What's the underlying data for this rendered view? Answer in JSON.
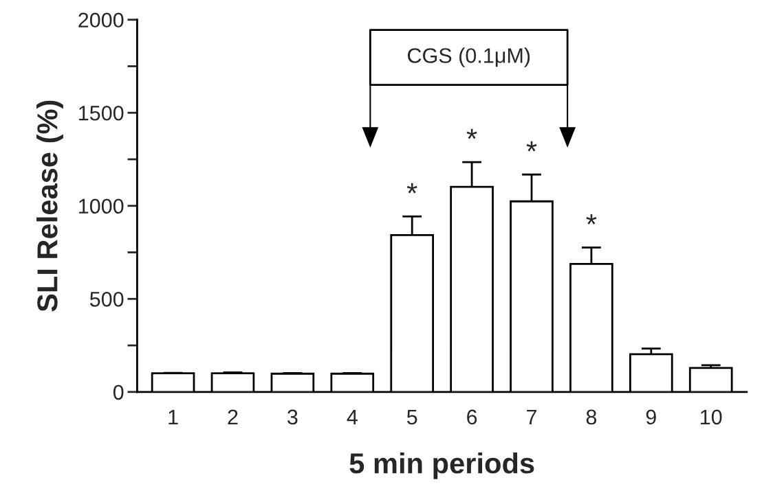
{
  "chart_data": {
    "type": "bar",
    "xlabel": "5 min periods",
    "ylabel": "SLI Release (%)",
    "categories": [
      "1",
      "2",
      "3",
      "4",
      "5",
      "6",
      "7",
      "8",
      "9",
      "10"
    ],
    "values": [
      100,
      100,
      98,
      98,
      843,
      1102,
      1024,
      688,
      203,
      129
    ],
    "errors": [
      2,
      5,
      3,
      3,
      100,
      133,
      144,
      88,
      30,
      15
    ],
    "color": "#ffffff",
    "ylim": [
      0,
      2000
    ],
    "yticks": [
      0,
      {
        "value": 250,
        "label": null
      },
      500,
      {
        "value": 750,
        "label": null
      },
      1000,
      {
        "value": 1250,
        "label": null
      },
      1500,
      {
        "value": 1750,
        "label": null
      },
      2000
    ],
    "annotations": [
      "CGS (0.1μM)",
      {
        "text": "*",
        "x": "5",
        "y": 943
      },
      {
        "text": "*",
        "x": "6",
        "y": 1235
      },
      {
        "text": "*",
        "x": "7",
        "y": 1168
      },
      {
        "text": "*",
        "x": "8",
        "y": 776
      }
    ],
    "grid": false
  }
}
